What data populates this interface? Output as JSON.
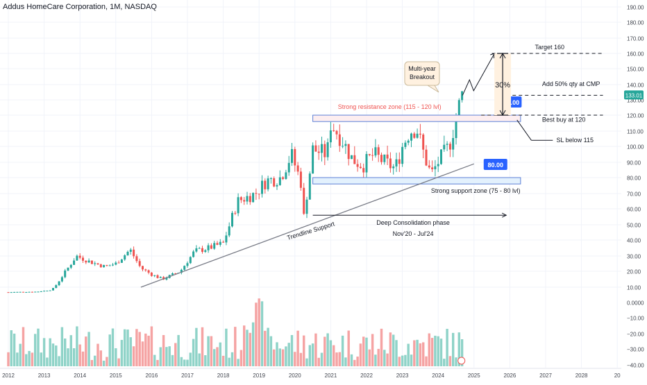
{
  "header": {
    "symbol_title": "Addus HomeCare Corporation, 1M, NASDAQ"
  },
  "colors": {
    "up": "#26a69a",
    "down": "#ef5350",
    "vol_up": "#8fd3c8",
    "vol_down": "#f5a3a3",
    "grid": "#f0f3fa",
    "text": "#131722",
    "axis_text": "#42464f",
    "tag_blue": "#2962ff",
    "price_tag": "#26a69a",
    "resistance_fill": "#fdeef0",
    "support_fill": "#e3f1fd",
    "zone_border": "#5b7fd6",
    "arrow_fill": "#fff1e0"
  },
  "chart_data": {
    "type": "candlestick",
    "symbol": "Addus HomeCare Corporation",
    "interval": "1M",
    "exchange": "NASDAQ",
    "price_axis": {
      "ticks": [
        "190.00",
        "180.00",
        "170.00",
        "160.00",
        "150.00",
        "140.00",
        "130.00",
        "120.00",
        "110.00",
        "100.00",
        "90.00",
        "80.00",
        "70.00",
        "60.00",
        "50.00",
        "40.00",
        "30.00",
        "20.00",
        "10.00"
      ],
      "range": [
        0,
        190
      ],
      "scale": "log"
    },
    "volume_axis": {
      "ticks": [
        "0.0000",
        "−10.00",
        "−20.00",
        "−30.00",
        "−40.00"
      ]
    },
    "time_axis": {
      "ticks": [
        "2012",
        "2013",
        "2014",
        "2015",
        "2016",
        "2017",
        "2018",
        "2019",
        "2020",
        "2021",
        "2022",
        "2023",
        "2024",
        "2025",
        "2026",
        "2027",
        "2028",
        "20"
      ]
    },
    "current_price": "133.01",
    "ohlc_yearly_anchors": [
      {
        "year": 2012,
        "close": 5
      },
      {
        "year": 2013,
        "close": 8
      },
      {
        "year": 2014,
        "close": 23
      },
      {
        "year": 2015,
        "close": 25
      },
      {
        "year": 2016,
        "close": 17
      },
      {
        "year": 2017,
        "close": 33
      },
      {
        "year": 2018,
        "close": 62
      },
      {
        "year": 2019,
        "close": 90
      },
      {
        "year": 2020,
        "close": 95
      },
      {
        "year": 2021,
        "close": 90
      },
      {
        "year": 2022,
        "close": 95
      },
      {
        "year": 2023,
        "close": 92
      },
      {
        "year": 2024,
        "close": 133
      }
    ],
    "annotations": {
      "resistance_zone": "Strong resistance zone (115 - 120 lvl)",
      "support_zone": "Strong support zone (75 - 80 lvl)",
      "tag_120": "120.00",
      "tag_80": "80.00",
      "breakout": [
        "Multi-year",
        "Breakout"
      ],
      "target": "Target 160",
      "add_qty": "Add 50% qty at CMP",
      "best_buy": "Best buy at 120",
      "stop_loss": "SL below 115",
      "percent": "30%",
      "consolidation": "Deep Consolidation phase",
      "consolidation_period": "Nov'20 - Jul'24",
      "trendline": "Trendline Support"
    }
  }
}
